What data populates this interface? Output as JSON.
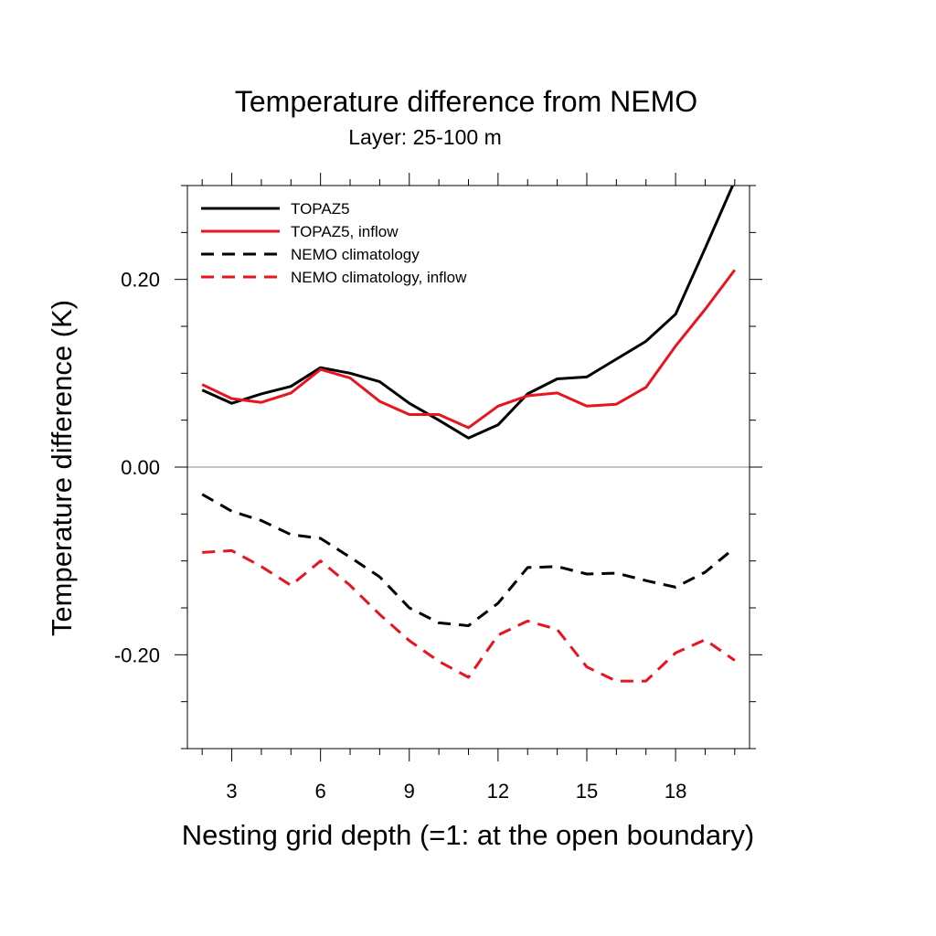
{
  "chart_data": {
    "type": "line",
    "title": "Temperature difference from NEMO",
    "subtitle": "Layer: 25-100 m",
    "xlabel": "Nesting grid depth (=1: at the open boundary)",
    "ylabel": "Temperature difference (K)",
    "xlim": [
      1.5,
      20.5
    ],
    "ylim": [
      -0.3,
      0.3
    ],
    "xticks": [
      3,
      6,
      9,
      12,
      15,
      18
    ],
    "xtick_labels": [
      "3",
      "6",
      "9",
      "12",
      "15",
      "18"
    ],
    "yticks": [
      -0.2,
      0.0,
      0.2
    ],
    "ytick_labels": [
      "-0.20",
      "0.00",
      "0.20"
    ],
    "zero_line": true,
    "grid": false,
    "legend_position": "top-left",
    "x": [
      2,
      3,
      4,
      5,
      6,
      7,
      8,
      9,
      10,
      11,
      12,
      13,
      14,
      15,
      16,
      17,
      18,
      19,
      20
    ],
    "series": [
      {
        "name": "TOPAZ5",
        "color": "#000000",
        "dash": "solid",
        "values": [
          0.082,
          0.068,
          0.078,
          0.086,
          0.106,
          0.1,
          0.091,
          0.068,
          0.05,
          0.031,
          0.045,
          0.078,
          0.094,
          0.096,
          0.115,
          0.134,
          0.163,
          0.233,
          0.305
        ]
      },
      {
        "name": "TOPAZ5, inflow",
        "color": "#e8141e",
        "dash": "solid",
        "values": [
          0.088,
          0.073,
          0.069,
          0.079,
          0.104,
          0.095,
          0.07,
          0.056,
          0.056,
          0.042,
          0.065,
          0.076,
          0.079,
          0.065,
          0.067,
          0.085,
          0.129,
          0.168,
          0.21
        ]
      },
      {
        "name": "NEMO climatology",
        "color": "#000000",
        "dash": "dashed",
        "values": [
          -0.029,
          -0.047,
          -0.057,
          -0.072,
          -0.076,
          -0.096,
          -0.117,
          -0.15,
          -0.166,
          -0.169,
          -0.145,
          -0.107,
          -0.106,
          -0.114,
          -0.113,
          -0.121,
          -0.128,
          -0.112,
          -0.086
        ]
      },
      {
        "name": "NEMO climatology, inflow",
        "color": "#e8141e",
        "dash": "dashed",
        "values": [
          -0.091,
          -0.089,
          -0.106,
          -0.126,
          -0.1,
          -0.126,
          -0.157,
          -0.185,
          -0.207,
          -0.224,
          -0.179,
          -0.164,
          -0.173,
          -0.213,
          -0.228,
          -0.228,
          -0.198,
          -0.184,
          -0.206
        ]
      }
    ]
  }
}
